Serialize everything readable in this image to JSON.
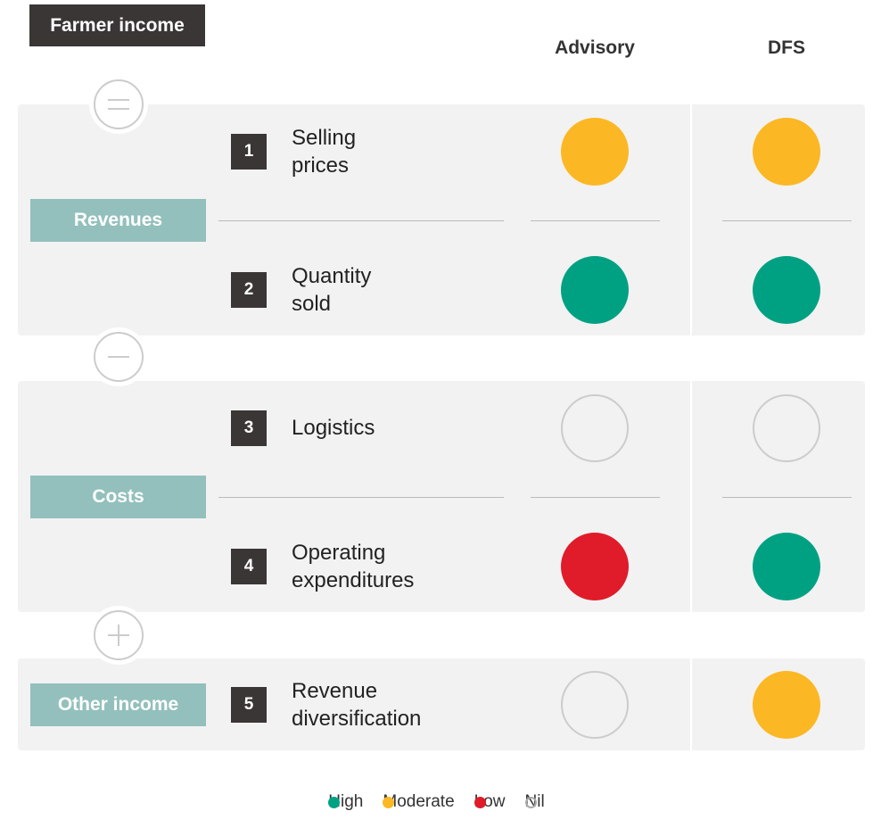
{
  "header": {
    "title": "Farmer income",
    "columns": [
      "Advisory",
      "DFS"
    ]
  },
  "groups": [
    {
      "label": "Revenues",
      "rows": [
        {
          "number": "1",
          "label": "Selling prices",
          "ratings": [
            "Moderate",
            "Moderate"
          ]
        },
        {
          "number": "2",
          "label": "Quantity sold",
          "ratings": [
            "High",
            "High"
          ]
        }
      ]
    },
    {
      "label": "Costs",
      "rows": [
        {
          "number": "3",
          "label": "Logistics",
          "ratings": [
            "Nil",
            "Nil"
          ]
        },
        {
          "number": "4",
          "label": "Operating expenditures",
          "ratings": [
            "Low",
            "High"
          ]
        }
      ]
    },
    {
      "label": "Other income",
      "rows": [
        {
          "number": "5",
          "label": "Revenue diversification",
          "ratings": [
            "Nil",
            "Moderate"
          ]
        }
      ]
    }
  ],
  "legend": [
    {
      "name": "High",
      "color": "#00a183"
    },
    {
      "name": "Moderate",
      "color": "#fbb824"
    },
    {
      "name": "Low",
      "color": "#e01b2a"
    },
    {
      "name": "Nil",
      "color": "none"
    }
  ]
}
